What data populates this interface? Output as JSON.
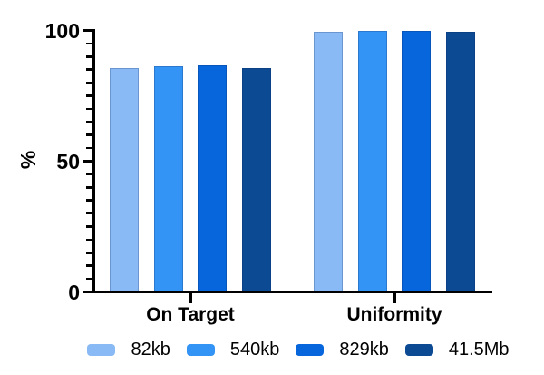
{
  "chart_data": {
    "type": "bar",
    "ylabel": "%",
    "categories": [
      "On Target",
      "Uniformity"
    ],
    "series": [
      {
        "name": "82kb",
        "color": "#8ABAF5",
        "values": [
          85.6,
          99.5
        ]
      },
      {
        "name": "540kb",
        "color": "#3494F6",
        "values": [
          86.3,
          99.7
        ]
      },
      {
        "name": "829kb",
        "color": "#0766DC",
        "values": [
          86.6,
          99.9
        ]
      },
      {
        "name": "41.5Mb",
        "color": "#0C4A93",
        "values": [
          85.6,
          99.5
        ]
      }
    ],
    "ylim": [
      0,
      100
    ],
    "yticks_major": [
      0,
      50,
      100
    ],
    "ytick_minor_step": 5,
    "grid": false,
    "legend_position": "bottom",
    "axis_color": "#000000",
    "background_color": "#ffffff"
  }
}
